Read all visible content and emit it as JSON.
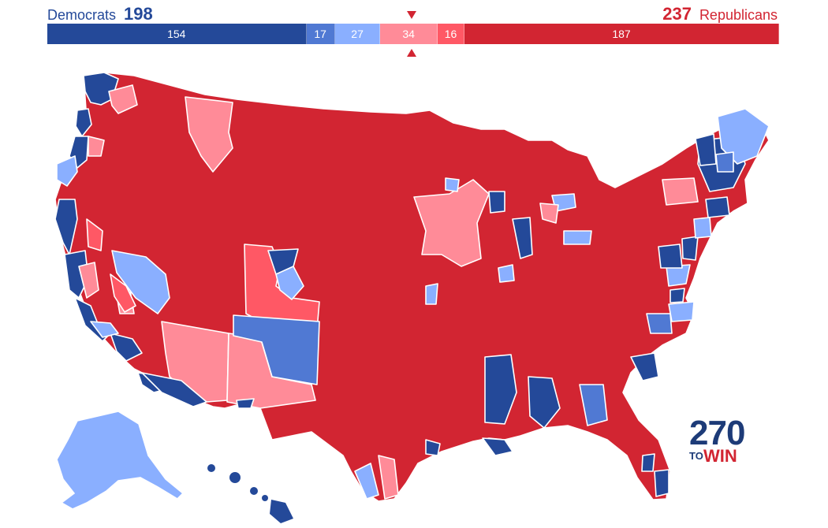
{
  "header": {
    "dem_label": "Democrats",
    "dem_total": "198",
    "rep_total": "237",
    "rep_label": "Republicans"
  },
  "bar_segments": [
    {
      "label": "154",
      "seats": 154,
      "color": "#244999",
      "category": "safe-dem"
    },
    {
      "label": "17",
      "seats": 17,
      "color": "#5079d3",
      "category": "likely-dem"
    },
    {
      "label": "27",
      "seats": 27,
      "color": "#8aafff",
      "category": "lean-dem"
    },
    {
      "label": "34",
      "seats": 34,
      "color": "#ff8b98",
      "category": "lean-rep"
    },
    {
      "label": "16",
      "seats": 16,
      "color": "#ff5865",
      "category": "likely-rep"
    },
    {
      "label": "187",
      "seats": 187,
      "color": "#d22532",
      "category": "safe-rep"
    }
  ],
  "colors": {
    "safe_dem": "#244999",
    "likely_dem": "#5079d3",
    "lean_dem": "#8aafff",
    "lean_rep": "#ff8b98",
    "likely_rep": "#ff5865",
    "safe_rep": "#d22532",
    "border": "#ffffff"
  },
  "logo": {
    "number": "270",
    "to": "TO",
    "win": "WIN"
  }
}
